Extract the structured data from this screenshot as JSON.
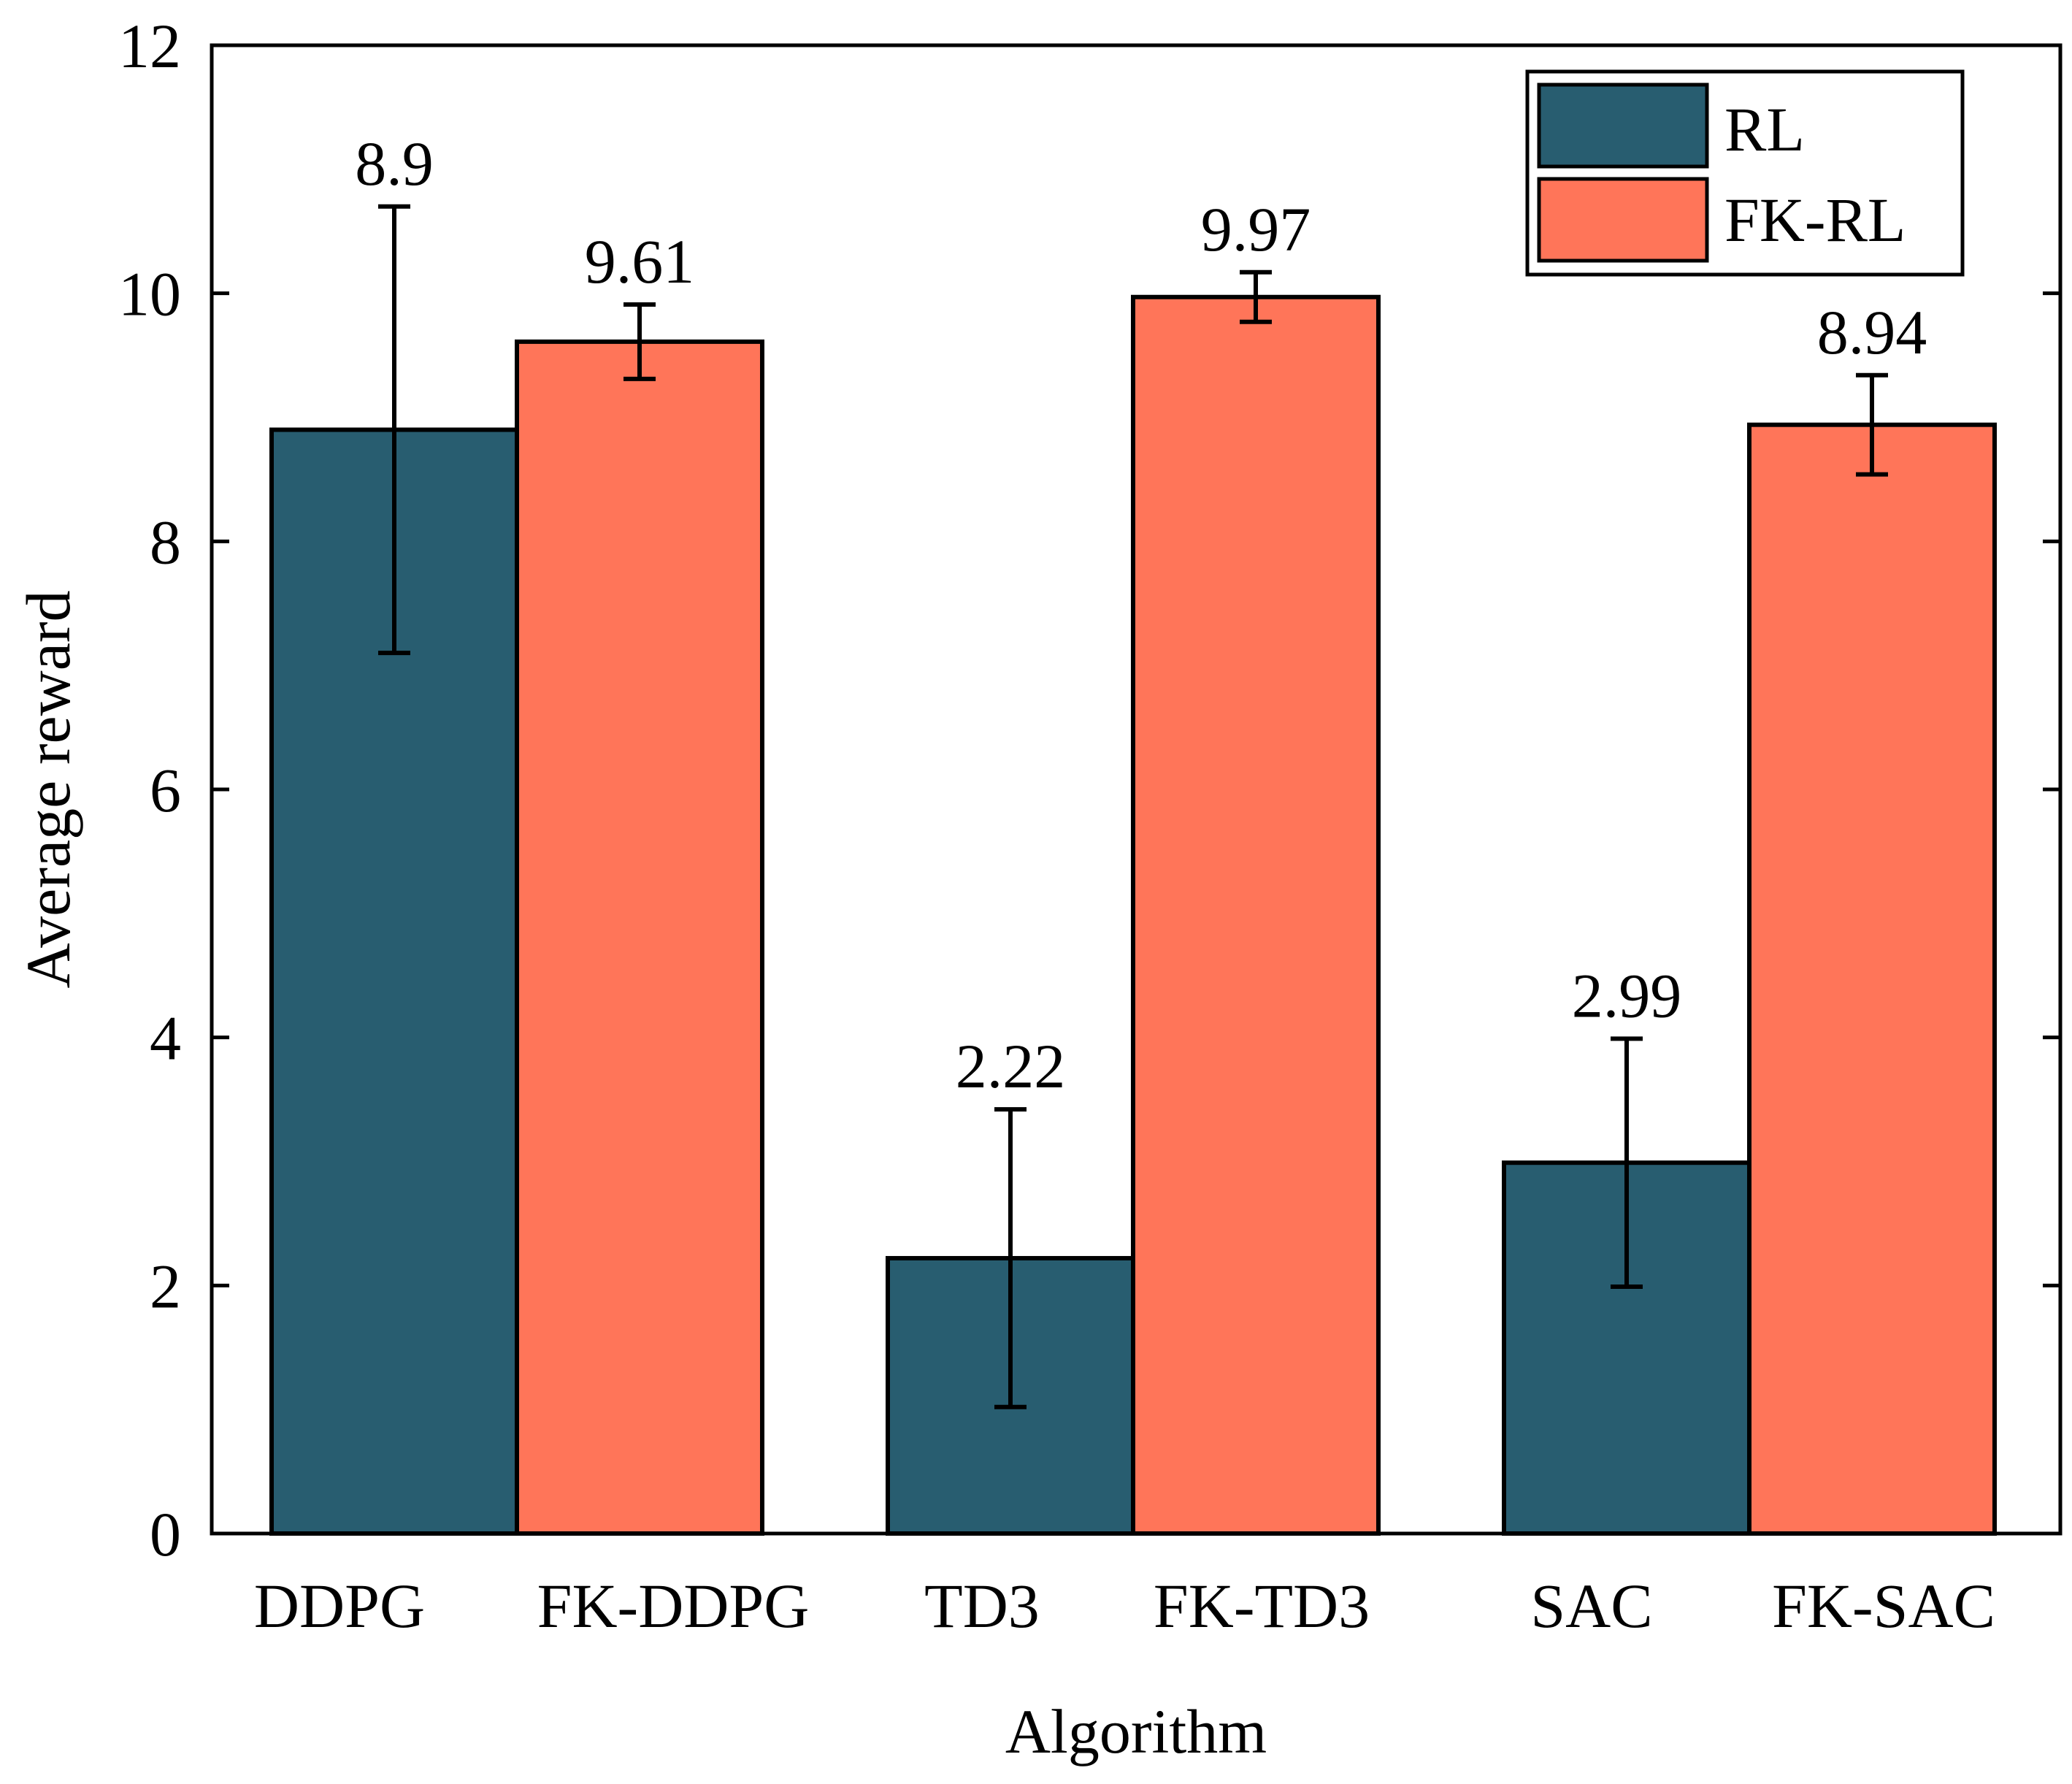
{
  "chart_data": {
    "type": "bar",
    "title": "",
    "xlabel": "Algorithm",
    "ylabel": "Average reward",
    "ylim": [
      0,
      12
    ],
    "yticks": [
      0,
      2,
      4,
      6,
      8,
      10,
      12
    ],
    "grid": false,
    "legend_position": "top-right",
    "categories": [
      "DDPG",
      "FK-DDPG",
      "TD3",
      "FK-TD3",
      "SAC",
      "FK-SAC"
    ],
    "series": [
      {
        "name": "RL",
        "color": "#285d70"
      },
      {
        "name": "FK-RL",
        "color": "#ff7559"
      }
    ],
    "bars": [
      {
        "category": "DDPG",
        "series": "RL",
        "value": 8.9,
        "error": 1.8,
        "label": "8.9"
      },
      {
        "category": "FK-DDPG",
        "series": "FK-RL",
        "value": 9.61,
        "error": 0.3,
        "label": "9.61"
      },
      {
        "category": "TD3",
        "series": "RL",
        "value": 2.22,
        "error": 1.2,
        "label": "2.22"
      },
      {
        "category": "FK-TD3",
        "series": "FK-RL",
        "value": 9.97,
        "error": 0.2,
        "label": "9.97"
      },
      {
        "category": "SAC",
        "series": "RL",
        "value": 2.99,
        "error": 1.0,
        "label": "2.99"
      },
      {
        "category": "FK-SAC",
        "series": "FK-RL",
        "value": 8.94,
        "error": 0.4,
        "label": "8.94"
      }
    ]
  }
}
